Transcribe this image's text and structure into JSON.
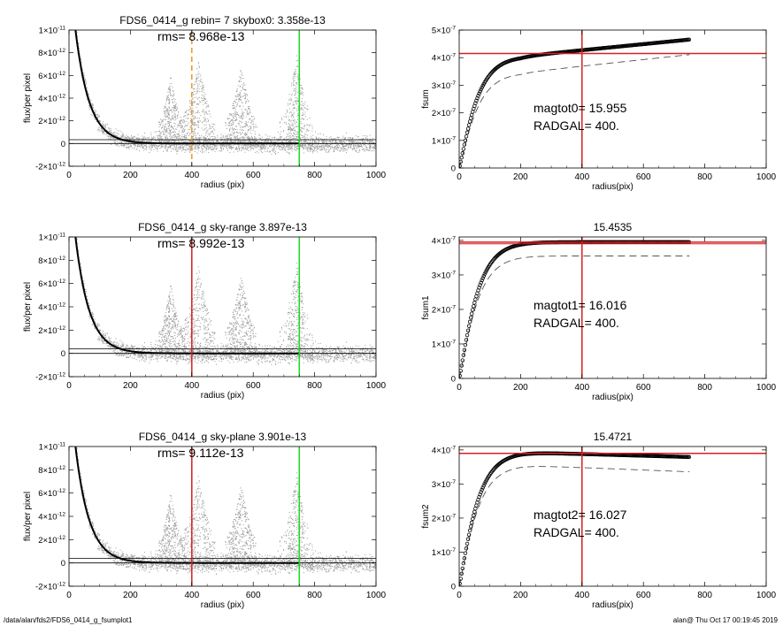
{
  "footer": {
    "path": "/data/alan/fds2/FDS6_0414_g_fsumplot1",
    "stamp": "alan@  Thu Oct 17 00:19:45 2019"
  },
  "colors": {
    "scatter": "#9a9a9a",
    "profile": "#000000",
    "red_marker": "#d62020",
    "green_marker": "#1ed81e",
    "orange_marker": "#f0961e",
    "dashed_curve": "#555555"
  },
  "chart_data": [
    {
      "id": "profile-1",
      "type": "scatter",
      "title": "FDS6_0414_g rebin= 7    skybox0:  3.358e-13",
      "annotation": "rms= 8.968e-13",
      "xlabel": "radius (pix)",
      "ylabel": "flux/per pixel",
      "xlim": [
        0,
        1000
      ],
      "ylim": [
        -2e-12,
        1e-11
      ],
      "xticks": [
        "0",
        "200",
        "400",
        "600",
        "800",
        "1000"
      ],
      "yticks": [
        {
          "m": "-2",
          "e": "-12",
          "v": -2e-12
        },
        {
          "m": "0",
          "e": "",
          "v": 0
        },
        {
          "m": "2",
          "e": "-12",
          "v": 2e-12
        },
        {
          "m": "4",
          "e": "-12",
          "v": 4e-12
        },
        {
          "m": "6",
          "e": "-12",
          "v": 6e-12
        },
        {
          "m": "8",
          "e": "-12",
          "v": 8e-12
        },
        {
          "m": "1",
          "e": "-11",
          "v": 1e-11
        }
      ],
      "profile": {
        "amplitude": 1.6e-11,
        "scale": 45,
        "sky": 0.0
      },
      "sky_lines": [
        3.358e-13,
        0.0
      ],
      "vlines": [
        {
          "x": 400,
          "color": "orange_marker",
          "dash": true
        },
        {
          "x": 750,
          "color": "green_marker",
          "dash": false
        }
      ],
      "scatter": {
        "noise": 5.5e-13,
        "peaks": [
          {
            "x": 420,
            "h": 7.5e-12,
            "w": 45
          },
          {
            "x": 560,
            "h": 7e-12,
            "w": 40
          },
          {
            "x": 740,
            "h": 8e-12,
            "w": 40
          },
          {
            "x": 330,
            "h": 6e-12,
            "w": 35
          }
        ]
      }
    },
    {
      "id": "profile-2",
      "type": "scatter",
      "title": "FDS6_0414_g sky-range  3.897e-13",
      "annotation": "rms= 8.992e-13",
      "xlabel": "radius (pix)",
      "ylabel": "flux/per pixel",
      "xlim": [
        0,
        1000
      ],
      "ylim": [
        -2e-12,
        1e-11
      ],
      "xticks": [
        "0",
        "200",
        "400",
        "600",
        "800",
        "1000"
      ],
      "yticks": [
        {
          "m": "-2",
          "e": "-12",
          "v": -2e-12
        },
        {
          "m": "0",
          "e": "",
          "v": 0
        },
        {
          "m": "2",
          "e": "-12",
          "v": 2e-12
        },
        {
          "m": "4",
          "e": "-12",
          "v": 4e-12
        },
        {
          "m": "6",
          "e": "-12",
          "v": 6e-12
        },
        {
          "m": "8",
          "e": "-12",
          "v": 8e-12
        },
        {
          "m": "1",
          "e": "-11",
          "v": 1e-11
        }
      ],
      "profile": {
        "amplitude": 1.6e-11,
        "scale": 45,
        "sky": 0.0
      },
      "sky_lines": [
        3.897e-13,
        0.0
      ],
      "vlines": [
        {
          "x": 400,
          "color": "red_marker",
          "dash": false
        },
        {
          "x": 750,
          "color": "green_marker",
          "dash": false
        }
      ],
      "scatter": {
        "noise": 5.5e-13,
        "peaks": [
          {
            "x": 420,
            "h": 7.8e-12,
            "w": 45
          },
          {
            "x": 560,
            "h": 7e-12,
            "w": 40
          },
          {
            "x": 740,
            "h": 8e-12,
            "w": 40
          },
          {
            "x": 330,
            "h": 6e-12,
            "w": 35
          }
        ]
      }
    },
    {
      "id": "profile-3",
      "type": "scatter",
      "title": "FDS6_0414_g sky-plane  3.901e-13",
      "annotation": "rms= 9.112e-13",
      "xlabel": "radius (pix)",
      "ylabel": "flux/per pixel",
      "xlim": [
        0,
        1000
      ],
      "ylim": [
        -2e-12,
        1e-11
      ],
      "xticks": [
        "0",
        "200",
        "400",
        "600",
        "800",
        "1000"
      ],
      "yticks": [
        {
          "m": "-2",
          "e": "-12",
          "v": -2e-12
        },
        {
          "m": "0",
          "e": "",
          "v": 0
        },
        {
          "m": "2",
          "e": "-12",
          "v": 2e-12
        },
        {
          "m": "4",
          "e": "-12",
          "v": 4e-12
        },
        {
          "m": "6",
          "e": "-12",
          "v": 6e-12
        },
        {
          "m": "8",
          "e": "-12",
          "v": 8e-12
        },
        {
          "m": "1",
          "e": "-11",
          "v": 1e-11
        }
      ],
      "profile": {
        "amplitude": 1.6e-11,
        "scale": 45,
        "sky": 0.0
      },
      "sky_lines": [
        3.901e-13,
        0.0
      ],
      "vlines": [
        {
          "x": 400,
          "color": "red_marker",
          "dash": false
        },
        {
          "x": 750,
          "color": "green_marker",
          "dash": false
        }
      ],
      "scatter": {
        "noise": 5.5e-13,
        "peaks": [
          {
            "x": 420,
            "h": 7.8e-12,
            "w": 45
          },
          {
            "x": 560,
            "h": 7e-12,
            "w": 40
          },
          {
            "x": 740,
            "h": 8e-12,
            "w": 40
          },
          {
            "x": 330,
            "h": 6e-12,
            "w": 35
          }
        ]
      }
    },
    {
      "id": "growth-1",
      "type": "line",
      "title": "",
      "xlabel": "radius(pix)",
      "ylabel": "fsum",
      "xlim": [
        0,
        1000
      ],
      "ylim": [
        0,
        5e-07
      ],
      "xticks": [
        "0",
        "200",
        "400",
        "600",
        "800",
        "1000"
      ],
      "yticks": [
        {
          "m": "0",
          "e": "",
          "v": 0
        },
        {
          "m": "1",
          "e": "-7",
          "v": 1e-07
        },
        {
          "m": "2",
          "e": "-7",
          "v": 2e-07
        },
        {
          "m": "3",
          "e": "-7",
          "v": 3e-07
        },
        {
          "m": "4",
          "e": "-7",
          "v": 4e-07
        },
        {
          "m": "5",
          "e": "-7",
          "v": 5e-07
        }
      ],
      "curve": {
        "plateau": 4.05e-07,
        "scale": 60,
        "slope": 1.1e-10,
        "xmax": 750
      },
      "dashed": {
        "plateau": 3.45e-07,
        "scale": 60,
        "slope": 1.2e-10,
        "xmax": 750
      },
      "hline": 4.15e-07,
      "vline": 400,
      "annotations": [
        "magtot0=  15.955",
        "RADGAL=    400."
      ]
    },
    {
      "id": "growth-2",
      "type": "line",
      "title": "15.4535",
      "xlabel": "radius(pix)",
      "ylabel": "fsum1",
      "xlim": [
        0,
        1000
      ],
      "ylim": [
        0,
        4.1e-07
      ],
      "xticks": [
        "0",
        "200",
        "400",
        "600",
        "800",
        "1000"
      ],
      "yticks": [
        {
          "m": "0",
          "e": "",
          "v": 0
        },
        {
          "m": "1",
          "e": "-7",
          "v": 1e-07
        },
        {
          "m": "2",
          "e": "-7",
          "v": 2e-07
        },
        {
          "m": "3",
          "e": "-7",
          "v": 3e-07
        },
        {
          "m": "4",
          "e": "-7",
          "v": 4e-07
        }
      ],
      "curve": {
        "plateau": 3.95e-07,
        "scale": 60,
        "slope": 0,
        "xmax": 750
      },
      "dashed": {
        "plateau": 3.55e-07,
        "scale": 60,
        "slope": 0,
        "xmax": 750
      },
      "hline": 3.95e-07,
      "hline2": 3.9e-07,
      "vline": 400,
      "annotations": [
        "magtot1=  16.016",
        "RADGAL=    400."
      ]
    },
    {
      "id": "growth-3",
      "type": "line",
      "title": "15.4721",
      "xlabel": "radius(pix)",
      "ylabel": "fsum2",
      "xlim": [
        0,
        1000
      ],
      "ylim": [
        0,
        4.1e-07
      ],
      "xticks": [
        "0",
        "200",
        "400",
        "600",
        "800",
        "1000"
      ],
      "yticks": [
        {
          "m": "0",
          "e": "",
          "v": 0
        },
        {
          "m": "1",
          "e": "-7",
          "v": 1e-07
        },
        {
          "m": "2",
          "e": "-7",
          "v": 2e-07
        },
        {
          "m": "3",
          "e": "-7",
          "v": 3e-07
        },
        {
          "m": "4",
          "e": "-7",
          "v": 4e-07
        }
      ],
      "curve": {
        "plateau": 3.93e-07,
        "scale": 60,
        "slope": -2.5e-11,
        "xmax": 750
      },
      "dashed": {
        "plateau": 3.55e-07,
        "scale": 60,
        "slope": -3.5e-11,
        "xmax": 750
      },
      "hline": 3.9e-07,
      "vline": 400,
      "annotations": [
        "magtot2=  16.027",
        "RADGAL=    400."
      ]
    }
  ]
}
